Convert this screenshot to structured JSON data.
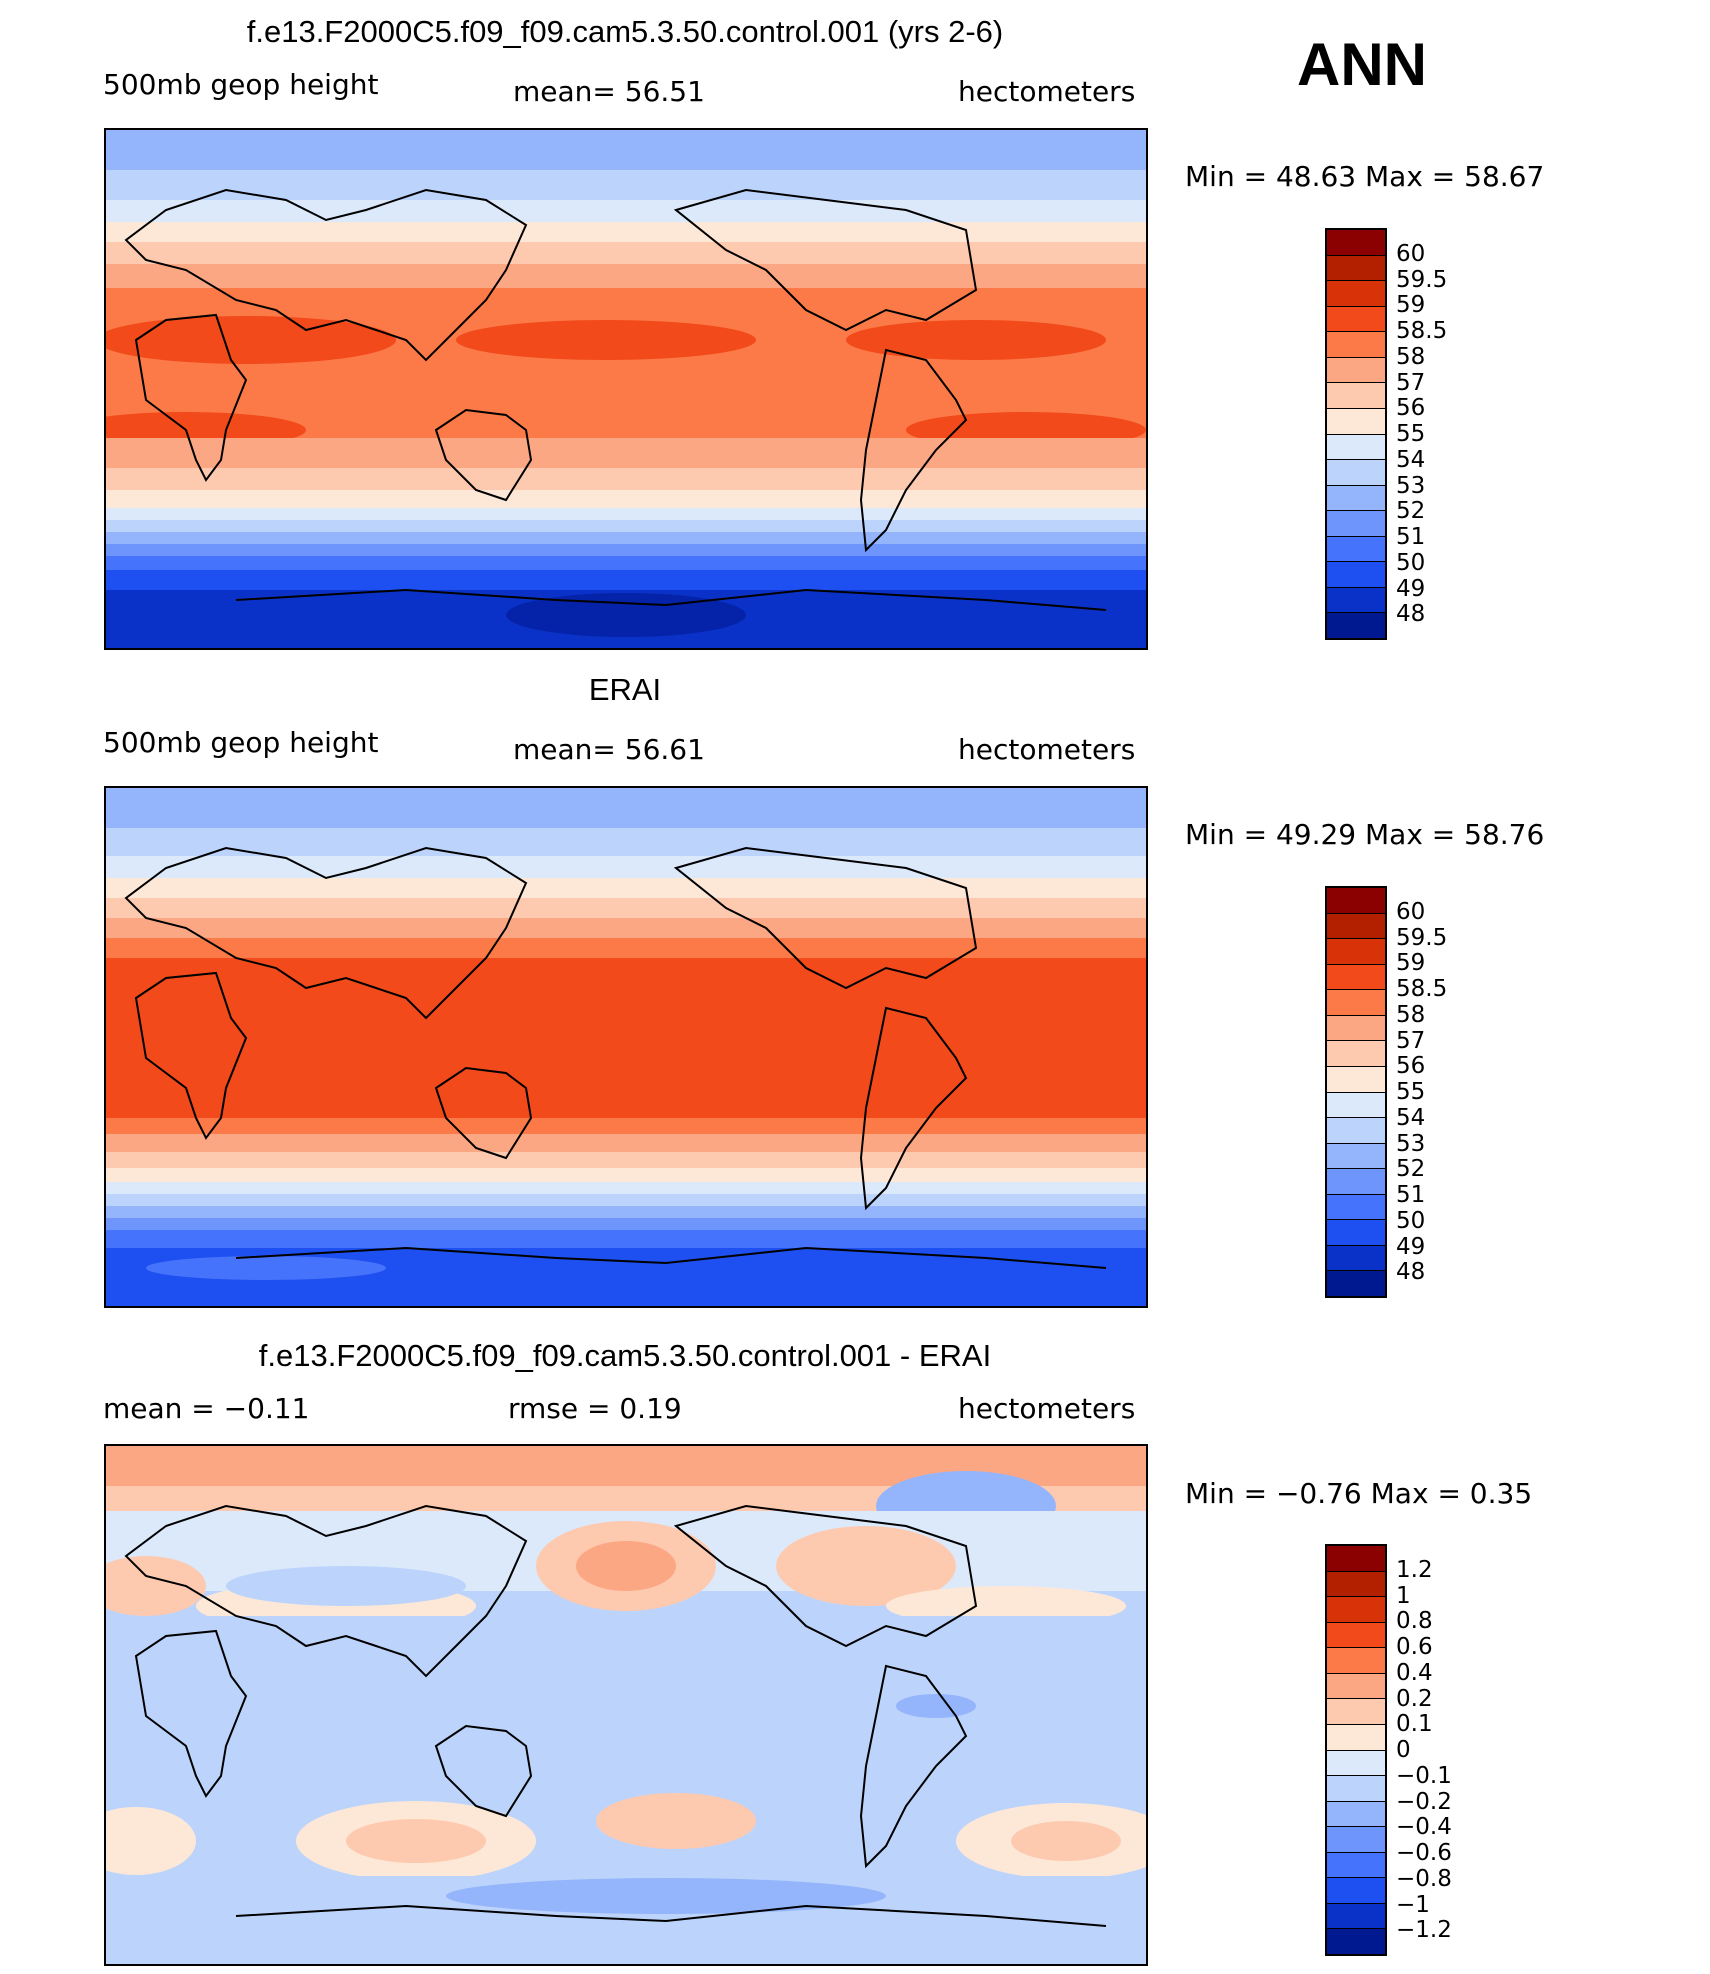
{
  "season": "ANN",
  "panels": [
    {
      "title": "f.e13.F2000C5.f09_f09.cam5.3.50.control.001 (yrs 2-6)",
      "left_label": "500mb geop height",
      "center_label": "mean=   56.51",
      "right_label": "hectometers",
      "minmax": "Min  =    48.63  Max  =    58.67"
    },
    {
      "title": "ERAI",
      "left_label": "500mb geop height",
      "center_label": "mean=   56.61",
      "right_label": "hectometers",
      "minmax": "Min  =    49.29  Max  =    58.76"
    },
    {
      "title": "f.e13.F2000C5.f09_f09.cam5.3.50.control.001 - ERAI",
      "left_label": "mean  =   −0.11",
      "center_label": "rmse  =     0.19",
      "right_label": "hectometers",
      "minmax": "Min  =   −0.76  Max  =     0.35"
    }
  ],
  "colorbars": {
    "field": {
      "labels": [
        "60",
        "59.5",
        "59",
        "58.5",
        "58",
        "57",
        "56",
        "55",
        "54",
        "53",
        "52",
        "51",
        "50",
        "49",
        "48"
      ],
      "colors": [
        "#8b0000",
        "#b22000",
        "#d83208",
        "#f24a1a",
        "#fb7a48",
        "#fca783",
        "#fdcab0",
        "#fde8d8",
        "#dbe9fb",
        "#bcd3fb",
        "#94b5fb",
        "#6d95fb",
        "#4573fb",
        "#1e4ff0",
        "#0b32c8",
        "#001890"
      ]
    },
    "difference": {
      "labels": [
        "1.2",
        "1",
        "0.8",
        "0.6",
        "0.4",
        "0.2",
        "0.1",
        "0",
        "−0.1",
        "−0.2",
        "−0.4",
        "−0.6",
        "−0.8",
        "−1",
        "−1.2"
      ],
      "colors": [
        "#8b0000",
        "#b22000",
        "#d83208",
        "#f24a1a",
        "#fb7a48",
        "#fca783",
        "#fdcab0",
        "#fde8d8",
        "#dbe9fb",
        "#bcd3fb",
        "#94b5fb",
        "#6d95fb",
        "#4573fb",
        "#1e4ff0",
        "#0b32c8",
        "#001890"
      ]
    }
  }
}
